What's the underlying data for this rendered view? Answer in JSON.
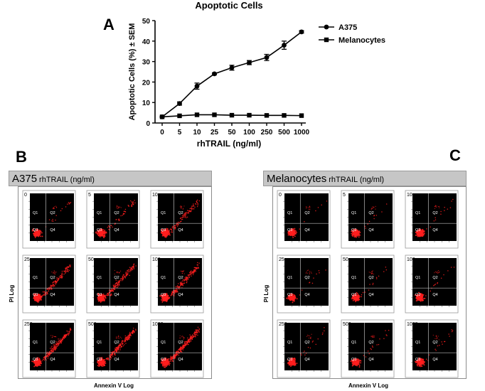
{
  "panels": {
    "a": {
      "letter": "A"
    },
    "b": {
      "letter": "B",
      "cell_label": "A375",
      "treatment_label": "rhTRAIL (ng/ml)"
    },
    "c": {
      "letter": "C",
      "cell_label": "Melanocytes",
      "treatment_label": "rhTRAIL (ng/ml)"
    }
  },
  "chart_data": [
    {
      "type": "line",
      "title": "Apoptotic Cells",
      "xlabel": "rhTRAIL (ng/ml)",
      "ylabel": "Apoptotic Cells (%) ± SEM",
      "categories": [
        "0",
        "5",
        "10",
        "25",
        "50",
        "100",
        "250",
        "500",
        "1000"
      ],
      "ylim": [
        0,
        50
      ],
      "yticks": [
        0,
        10,
        20,
        30,
        40,
        50
      ],
      "legend_position": "top-right",
      "series": [
        {
          "name": "A375",
          "marker": "circle",
          "values": [
            3,
            9.5,
            18,
            24,
            27,
            29.5,
            32,
            38,
            44.5
          ],
          "errors": [
            0.3,
            0.8,
            1.5,
            0.5,
            1.2,
            1.0,
            1.5,
            2.0,
            0.6
          ]
        },
        {
          "name": "Melanocytes",
          "marker": "square",
          "values": [
            3,
            3.5,
            4,
            4,
            3.8,
            3.8,
            3.7,
            3.7,
            3.6
          ],
          "errors": [
            0.2,
            0.2,
            0.2,
            0.2,
            0.2,
            0.2,
            0.2,
            0.2,
            0.2
          ]
        }
      ]
    },
    {
      "type": "scatter",
      "panel": "B",
      "xlabel": "Annexin V Log",
      "ylabel": "PI Log",
      "quadrant_labels": [
        "Q1",
        "Q2",
        "Q3",
        "Q4"
      ],
      "plots": [
        {
          "dose": "0",
          "apoptotic_level": 0.05
        },
        {
          "dose": "5",
          "apoptotic_level": 0.15
        },
        {
          "dose": "10",
          "apoptotic_level": 0.3
        },
        {
          "dose": "25",
          "apoptotic_level": 0.4
        },
        {
          "dose": "50",
          "apoptotic_level": 0.5
        },
        {
          "dose": "100",
          "apoptotic_level": 0.55
        },
        {
          "dose": "250",
          "apoptotic_level": 0.6
        },
        {
          "dose": "500",
          "apoptotic_level": 0.7
        },
        {
          "dose": "1000",
          "apoptotic_level": 0.8
        }
      ]
    },
    {
      "type": "scatter",
      "panel": "C",
      "xlabel": "Annexin V Log",
      "ylabel": "PI Log",
      "quadrant_labels": [
        "Q1",
        "Q2",
        "Q3",
        "Q4"
      ],
      "plots": [
        {
          "dose": "0",
          "apoptotic_level": 0.02
        },
        {
          "dose": "5",
          "apoptotic_level": 0.03
        },
        {
          "dose": "10",
          "apoptotic_level": 0.04
        },
        {
          "dose": "25",
          "apoptotic_level": 0.03
        },
        {
          "dose": "50",
          "apoptotic_level": 0.04
        },
        {
          "dose": "100",
          "apoptotic_level": 0.04
        },
        {
          "dose": "250",
          "apoptotic_level": 0.05
        },
        {
          "dose": "500",
          "apoptotic_level": 0.05
        },
        {
          "dose": "1000",
          "apoptotic_level": 0.05
        }
      ]
    }
  ],
  "colors": {
    "dots": "#ff1e1e",
    "plot_bg": "#000000",
    "banner": "#c6c6c6"
  }
}
